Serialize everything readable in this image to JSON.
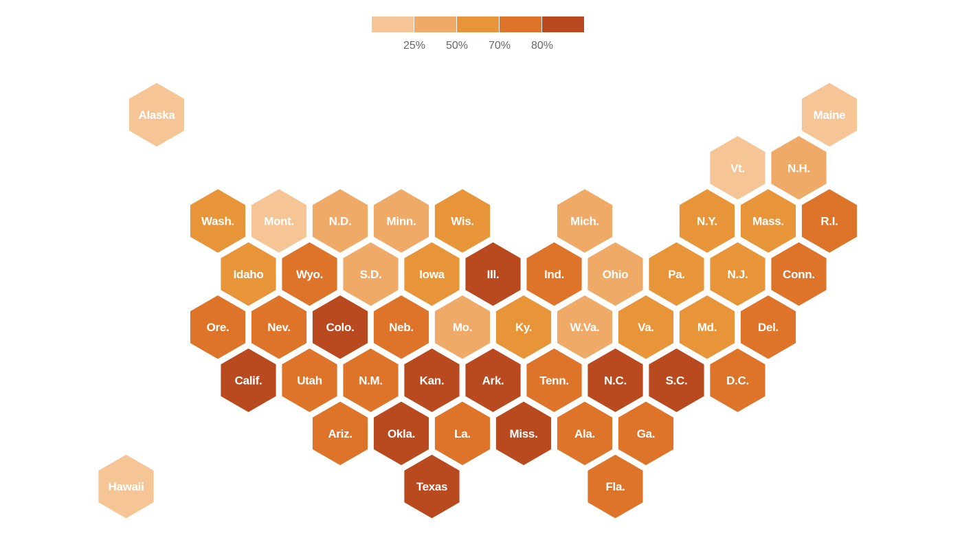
{
  "legend": {
    "colors": [
      "#f5c596",
      "#efaa67",
      "#e8953a",
      "#de7429",
      "#b94a1f"
    ],
    "ticks": [
      "25%",
      "50%",
      "70%",
      "80%"
    ]
  },
  "states": [
    {
      "label": "Alaska",
      "row": 0,
      "col": 0,
      "bin": 0
    },
    {
      "label": "Maine",
      "row": 0,
      "col": 11,
      "bin": 0
    },
    {
      "label": "Vt.",
      "row": 1,
      "col": 9.5,
      "bin": 0
    },
    {
      "label": "N.H.",
      "row": 1,
      "col": 10.5,
      "bin": 1
    },
    {
      "label": "Wash.",
      "row": 2,
      "col": 1,
      "bin": 2
    },
    {
      "label": "Mont.",
      "row": 2,
      "col": 2,
      "bin": 0
    },
    {
      "label": "N.D.",
      "row": 2,
      "col": 3,
      "bin": 1
    },
    {
      "label": "Minn.",
      "row": 2,
      "col": 4,
      "bin": 1
    },
    {
      "label": "Wis.",
      "row": 2,
      "col": 5,
      "bin": 2
    },
    {
      "label": "Mich.",
      "row": 2,
      "col": 7,
      "bin": 1
    },
    {
      "label": "N.Y.",
      "row": 2,
      "col": 9,
      "bin": 2
    },
    {
      "label": "Mass.",
      "row": 2,
      "col": 10,
      "bin": 2
    },
    {
      "label": "R.I.",
      "row": 2,
      "col": 11,
      "bin": 3
    },
    {
      "label": "Idaho",
      "row": 3,
      "col": 1.5,
      "bin": 2
    },
    {
      "label": "Wyo.",
      "row": 3,
      "col": 2.5,
      "bin": 3
    },
    {
      "label": "S.D.",
      "row": 3,
      "col": 3.5,
      "bin": 1
    },
    {
      "label": "Iowa",
      "row": 3,
      "col": 4.5,
      "bin": 2
    },
    {
      "label": "Ill.",
      "row": 3,
      "col": 5.5,
      "bin": 4
    },
    {
      "label": "Ind.",
      "row": 3,
      "col": 6.5,
      "bin": 3
    },
    {
      "label": "Ohio",
      "row": 3,
      "col": 7.5,
      "bin": 1
    },
    {
      "label": "Pa.",
      "row": 3,
      "col": 8.5,
      "bin": 2
    },
    {
      "label": "N.J.",
      "row": 3,
      "col": 9.5,
      "bin": 2
    },
    {
      "label": "Conn.",
      "row": 3,
      "col": 10.5,
      "bin": 3
    },
    {
      "label": "Ore.",
      "row": 4,
      "col": 1,
      "bin": 3
    },
    {
      "label": "Nev.",
      "row": 4,
      "col": 2,
      "bin": 3
    },
    {
      "label": "Colo.",
      "row": 4,
      "col": 3,
      "bin": 4
    },
    {
      "label": "Neb.",
      "row": 4,
      "col": 4,
      "bin": 3
    },
    {
      "label": "Mo.",
      "row": 4,
      "col": 5,
      "bin": 1
    },
    {
      "label": "Ky.",
      "row": 4,
      "col": 6,
      "bin": 2
    },
    {
      "label": "W.Va.",
      "row": 4,
      "col": 7,
      "bin": 1
    },
    {
      "label": "Va.",
      "row": 4,
      "col": 8,
      "bin": 2
    },
    {
      "label": "Md.",
      "row": 4,
      "col": 9,
      "bin": 2
    },
    {
      "label": "Del.",
      "row": 4,
      "col": 10,
      "bin": 3
    },
    {
      "label": "Calif.",
      "row": 5,
      "col": 1.5,
      "bin": 4
    },
    {
      "label": "Utah",
      "row": 5,
      "col": 2.5,
      "bin": 3
    },
    {
      "label": "N.M.",
      "row": 5,
      "col": 3.5,
      "bin": 3
    },
    {
      "label": "Kan.",
      "row": 5,
      "col": 4.5,
      "bin": 4
    },
    {
      "label": "Ark.",
      "row": 5,
      "col": 5.5,
      "bin": 4
    },
    {
      "label": "Tenn.",
      "row": 5,
      "col": 6.5,
      "bin": 3
    },
    {
      "label": "N.C.",
      "row": 5,
      "col": 7.5,
      "bin": 4
    },
    {
      "label": "S.C.",
      "row": 5,
      "col": 8.5,
      "bin": 4
    },
    {
      "label": "D.C.",
      "row": 5,
      "col": 9.5,
      "bin": 3
    },
    {
      "label": "Ariz.",
      "row": 6,
      "col": 3,
      "bin": 3
    },
    {
      "label": "Okla.",
      "row": 6,
      "col": 4,
      "bin": 4
    },
    {
      "label": "La.",
      "row": 6,
      "col": 5,
      "bin": 3
    },
    {
      "label": "Miss.",
      "row": 6,
      "col": 6,
      "bin": 4
    },
    {
      "label": "Ala.",
      "row": 6,
      "col": 7,
      "bin": 3
    },
    {
      "label": "Ga.",
      "row": 6,
      "col": 8,
      "bin": 3
    },
    {
      "label": "Hawaii",
      "row": 7,
      "col": -0.5,
      "bin": 0
    },
    {
      "label": "Texas",
      "row": 7,
      "col": 4.5,
      "bin": 4
    },
    {
      "label": "Fla.",
      "row": 7,
      "col": 7.5,
      "bin": 3
    }
  ]
}
